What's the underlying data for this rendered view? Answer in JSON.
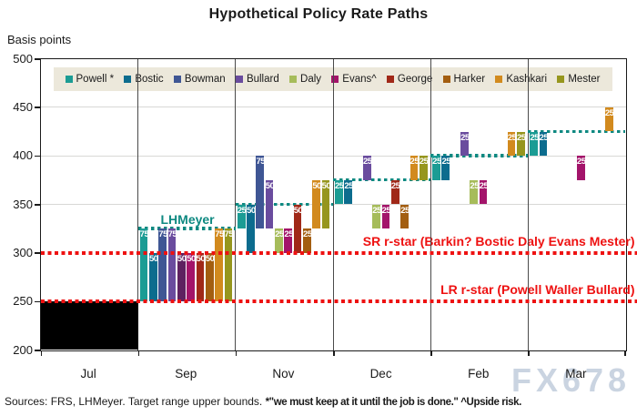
{
  "title": "Hypothetical Policy Rate Paths",
  "y_axis": {
    "label": "Basis points",
    "ticks": [
      500,
      450,
      400,
      350,
      300,
      250,
      200
    ],
    "min": 200,
    "max": 500,
    "gridlines_at": [
      450,
      400,
      350
    ]
  },
  "x_axis": {
    "months": [
      "Jul",
      "Sep",
      "Nov",
      "Dec",
      "Feb",
      "Mar"
    ]
  },
  "legend": {
    "items": [
      {
        "name": "Powell *",
        "color": "#1b9c94"
      },
      {
        "name": "Bostic",
        "color": "#0c6c8e"
      },
      {
        "name": "Bowman",
        "color": "#3f5694"
      },
      {
        "name": "Bullard",
        "color": "#6a4c9e"
      },
      {
        "name": "Daly",
        "color": "#a6bc5a"
      },
      {
        "name": "Evans^",
        "color": "#a3146a"
      },
      {
        "name": "George",
        "color": "#a02818"
      },
      {
        "name": "Harker",
        "color": "#a35e10"
      },
      {
        "name": "Kashkari",
        "color": "#d28a1e"
      },
      {
        "name": "Mester",
        "color": "#96961e"
      }
    ],
    "background": "#ece8db"
  },
  "annotations": {
    "lhmeyer_label": "LHMeyer",
    "lhmeyer_color": "#0e8981",
    "sr_label": "SR r-star (Barkin? Bostic Daly Evans Mester)",
    "lr_label": "LR r-star (Powell Waller Bullard)",
    "r_star_color": "#ee1111"
  },
  "source_note": {
    "part1": "Sources: FRS, LHMeyer. Target range upper bounds.",
    "part2": "*\"we must keep at it until the job is done.\" ^Upside risk."
  },
  "watermark": "FX678",
  "chart_data": {
    "type": "bar",
    "categories": [
      "Jul",
      "Sep",
      "Nov",
      "Dec",
      "Feb",
      "Mar"
    ],
    "ylim": [
      200,
      500
    ],
    "ylabel": "Basis points",
    "members": [
      "Powell *",
      "Bostic",
      "Bowman",
      "Bullard",
      "Daly",
      "Evans^",
      "George",
      "Harker",
      "Kashkari",
      "Mester"
    ],
    "jul_block": {
      "month": "Jul",
      "from": 200,
      "to": 250,
      "color": "#000000"
    },
    "r_star_lines": [
      {
        "level": 300,
        "label": "SR r-star (Barkin? Bostic Daly Evans Mester)"
      },
      {
        "level": 250,
        "label": "LR r-star (Powell Waller Bullard)"
      }
    ],
    "lhmeyer_path": [
      {
        "month": "Sep",
        "level": 325
      },
      {
        "month": "Nov",
        "level": 350
      },
      {
        "month": "Dec",
        "level": 375
      },
      {
        "month": "Feb",
        "level": 400
      },
      {
        "month": "Mar",
        "level": 425
      }
    ],
    "bars": [
      {
        "month": "Sep",
        "member": "Powell *",
        "from": 250,
        "to": 325,
        "label": "75"
      },
      {
        "month": "Sep",
        "member": "Bostic",
        "from": 250,
        "to": 300,
        "label": "50"
      },
      {
        "month": "Sep",
        "member": "Bowman",
        "from": 250,
        "to": 325,
        "label": "75"
      },
      {
        "month": "Sep",
        "member": "Bullard",
        "from": 250,
        "to": 325,
        "label": "75"
      },
      {
        "month": "Sep",
        "member": "Daly",
        "from": 250,
        "to": 300,
        "label": "50",
        "color_override": "#5e2160"
      },
      {
        "month": "Sep",
        "member": "Evans^",
        "from": 250,
        "to": 300,
        "label": "50"
      },
      {
        "month": "Sep",
        "member": "George",
        "from": 250,
        "to": 300,
        "label": "50"
      },
      {
        "month": "Sep",
        "member": "Harker",
        "from": 250,
        "to": 300,
        "label": "50"
      },
      {
        "month": "Sep",
        "member": "Kashkari",
        "from": 250,
        "to": 325,
        "label": "75"
      },
      {
        "month": "Sep",
        "member": "Mester",
        "from": 250,
        "to": 325,
        "label": "75"
      },
      {
        "month": "Nov",
        "member": "Powell *",
        "from": 325,
        "to": 350,
        "label": "25"
      },
      {
        "month": "Nov",
        "member": "Bostic",
        "from": 300,
        "to": 350,
        "label": "50"
      },
      {
        "month": "Nov",
        "member": "Bowman",
        "from": 325,
        "to": 400,
        "label": "75"
      },
      {
        "month": "Nov",
        "member": "Bullard",
        "from": 325,
        "to": 375,
        "label": "50"
      },
      {
        "month": "Nov",
        "member": "Daly",
        "from": 300,
        "to": 325,
        "label": "25"
      },
      {
        "month": "Nov",
        "member": "Evans^",
        "from": 300,
        "to": 325,
        "label": "25"
      },
      {
        "month": "Nov",
        "member": "George",
        "from": 300,
        "to": 350,
        "label": "50"
      },
      {
        "month": "Nov",
        "member": "Harker",
        "from": 300,
        "to": 325,
        "label": "25"
      },
      {
        "month": "Nov",
        "member": "Kashkari",
        "from": 325,
        "to": 375,
        "label": "50"
      },
      {
        "month": "Nov",
        "member": "Mester",
        "from": 325,
        "to": 375,
        "label": "50"
      },
      {
        "month": "Dec",
        "member": "Powell *",
        "from": 350,
        "to": 375,
        "label": "25"
      },
      {
        "month": "Dec",
        "member": "Bostic",
        "from": 350,
        "to": 375,
        "label": "25"
      },
      {
        "month": "Dec",
        "member": "Bullard",
        "from": 375,
        "to": 400,
        "label": "25"
      },
      {
        "month": "Dec",
        "member": "Daly",
        "from": 325,
        "to": 350,
        "label": "25"
      },
      {
        "month": "Dec",
        "member": "Evans^",
        "from": 325,
        "to": 350,
        "label": "25"
      },
      {
        "month": "Dec",
        "member": "George",
        "from": 350,
        "to": 375,
        "label": "25"
      },
      {
        "month": "Dec",
        "member": "Harker",
        "from": 325,
        "to": 350,
        "label": "25"
      },
      {
        "month": "Dec",
        "member": "Kashkari",
        "from": 375,
        "to": 400,
        "label": "25"
      },
      {
        "month": "Dec",
        "member": "Mester",
        "from": 375,
        "to": 400,
        "label": "25"
      },
      {
        "month": "Feb",
        "member": "Powell *",
        "from": 375,
        "to": 400,
        "label": "25"
      },
      {
        "month": "Feb",
        "member": "Bostic",
        "from": 375,
        "to": 400,
        "label": "25"
      },
      {
        "month": "Feb",
        "member": "Bullard",
        "from": 400,
        "to": 425,
        "label": "25"
      },
      {
        "month": "Feb",
        "member": "Daly",
        "from": 350,
        "to": 375,
        "label": "25"
      },
      {
        "month": "Feb",
        "member": "Evans^",
        "from": 350,
        "to": 375,
        "label": "25"
      },
      {
        "month": "Feb",
        "member": "Kashkari",
        "from": 400,
        "to": 425,
        "label": "25"
      },
      {
        "month": "Feb",
        "member": "Mester",
        "from": 400,
        "to": 425,
        "label": "25"
      },
      {
        "month": "Mar",
        "member": "Powell *",
        "from": 400,
        "to": 425,
        "label": "25"
      },
      {
        "month": "Mar",
        "member": "Bostic",
        "from": 400,
        "to": 425,
        "label": "25"
      },
      {
        "month": "Mar",
        "member": "Evans^",
        "from": 375,
        "to": 400,
        "label": "25"
      },
      {
        "month": "Mar",
        "member": "Kashkari",
        "from": 425,
        "to": 450,
        "label": "25"
      }
    ]
  }
}
